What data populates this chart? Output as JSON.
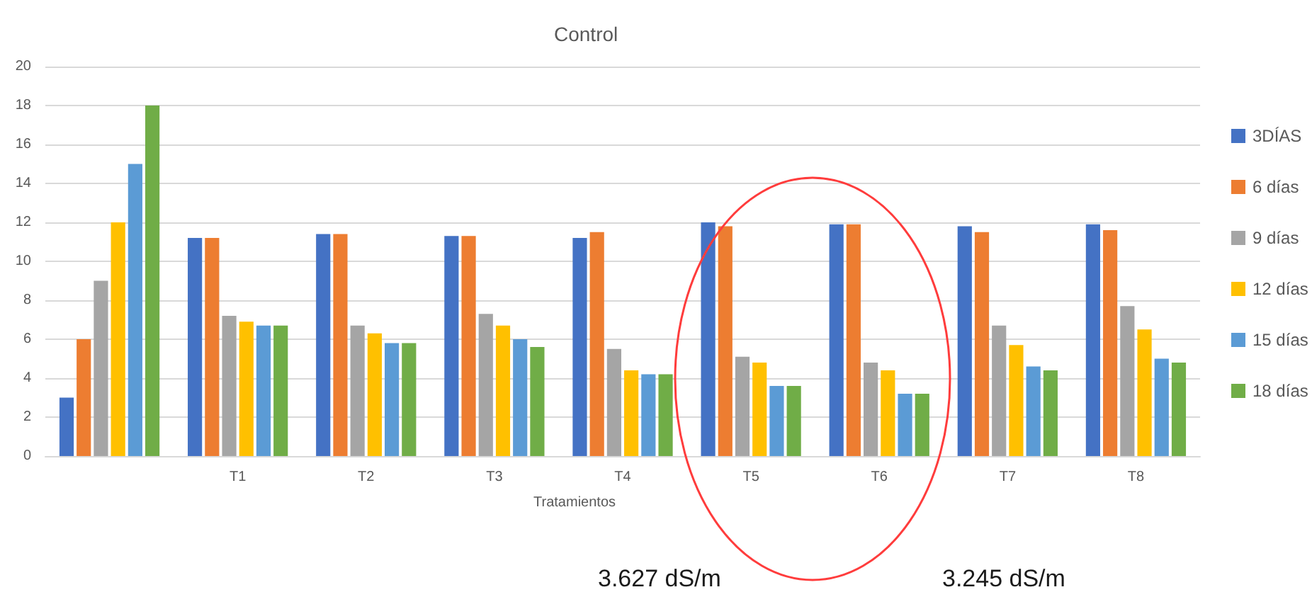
{
  "chart_data": {
    "type": "bar",
    "title": "Control",
    "xlabel": "Tratamientos",
    "categories": [
      null,
      "T1",
      "T2",
      "T3",
      "T4",
      "T5",
      "T6",
      "T7",
      "T8"
    ],
    "series": [
      {
        "name": "3DÍAS",
        "color": "#4472c4",
        "values": [
          3,
          11.2,
          11.4,
          11.3,
          11.2,
          12.0,
          11.9,
          11.8,
          11.9
        ]
      },
      {
        "name": "6 días",
        "color": "#ed7d31",
        "values": [
          6,
          11.2,
          11.4,
          11.3,
          11.5,
          11.8,
          11.9,
          11.5,
          11.6
        ]
      },
      {
        "name": "9 días",
        "color": "#a5a5a5",
        "values": [
          9,
          7.2,
          6.7,
          7.3,
          5.5,
          5.1,
          4.8,
          6.7,
          7.7
        ]
      },
      {
        "name": "12 días",
        "color": "#ffc000",
        "values": [
          12,
          6.9,
          6.3,
          6.7,
          4.4,
          4.8,
          4.4,
          5.7,
          6.5
        ]
      },
      {
        "name": "15 días",
        "color": "#5b9bd5",
        "values": [
          15,
          6.7,
          5.8,
          6.0,
          4.2,
          3.6,
          3.2,
          4.6,
          5.0
        ]
      },
      {
        "name": "18 días",
        "color": "#70ad47",
        "values": [
          18,
          6.7,
          5.8,
          5.6,
          4.2,
          3.6,
          3.2,
          4.4,
          4.8
        ]
      }
    ],
    "ylim": [
      0,
      20
    ],
    "yticks": [
      0,
      2,
      4,
      6,
      8,
      10,
      12,
      14,
      16,
      18,
      20
    ],
    "grid": "y",
    "legend": "right",
    "annotations": [
      "3.627 dS/m",
      "3.245 dS/m"
    ]
  }
}
